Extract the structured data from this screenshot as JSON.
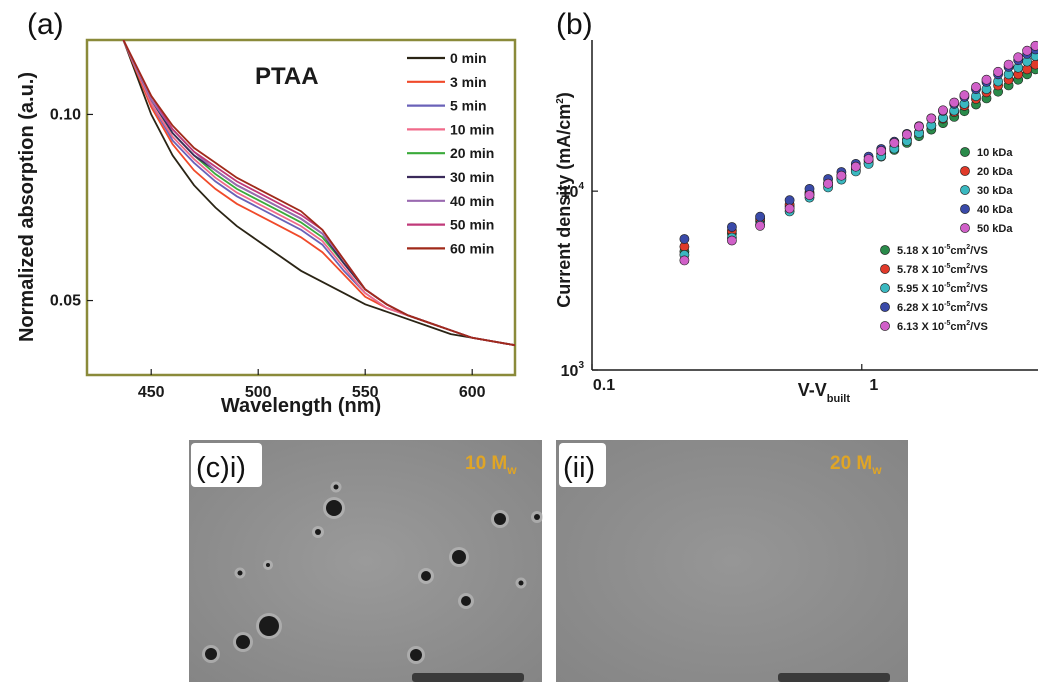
{
  "colors": {
    "axis": "#1a1a1a",
    "frame_a": "#8a8a3a",
    "sem_background": "#8f8f8f",
    "sem_label": "#e0a526"
  },
  "chart_data": [
    {
      "panel": "(a)",
      "type": "line",
      "annotation": "PTAA",
      "xlabel": "Wavelength (nm)",
      "ylabel": "Normalized absorption (a.u.)",
      "xlim": [
        420,
        620
      ],
      "ylim": [
        0.03,
        0.12
      ],
      "xticks": [
        450,
        500,
        550,
        600
      ],
      "yticks": [
        0.05,
        0.1
      ],
      "ytick_labels": [
        "0.05",
        "0.10"
      ],
      "legend_position": "top-right",
      "x": [
        437,
        450,
        460,
        470,
        480,
        490,
        500,
        510,
        520,
        530,
        540,
        550,
        560,
        570,
        580,
        590,
        600,
        610,
        620
      ],
      "series": [
        {
          "name": "0 min",
          "color": "#2a2415",
          "values": [
            0.12,
            0.1,
            0.089,
            0.081,
            0.075,
            0.07,
            0.066,
            0.062,
            0.058,
            0.055,
            0.052,
            0.049,
            0.047,
            0.045,
            0.043,
            0.041,
            0.04,
            0.039,
            0.038
          ]
        },
        {
          "name": "3 min",
          "color": "#f04a2a",
          "values": [
            0.12,
            0.102,
            0.092,
            0.085,
            0.08,
            0.076,
            0.073,
            0.07,
            0.067,
            0.063,
            0.057,
            0.051,
            0.048,
            0.046,
            0.044,
            0.042,
            0.04,
            0.039,
            0.038
          ]
        },
        {
          "name": "5 min",
          "color": "#6a62b8",
          "values": [
            0.12,
            0.103,
            0.093,
            0.087,
            0.082,
            0.078,
            0.075,
            0.072,
            0.069,
            0.065,
            0.058,
            0.052,
            0.048,
            0.046,
            0.044,
            0.042,
            0.04,
            0.039,
            0.038
          ]
        },
        {
          "name": "10 min",
          "color": "#f06a8a",
          "values": [
            0.12,
            0.103,
            0.094,
            0.088,
            0.083,
            0.079,
            0.076,
            0.073,
            0.07,
            0.066,
            0.059,
            0.052,
            0.048,
            0.046,
            0.044,
            0.042,
            0.04,
            0.039,
            0.038
          ]
        },
        {
          "name": "20 min",
          "color": "#3aaa3a",
          "values": [
            0.12,
            0.104,
            0.095,
            0.089,
            0.084,
            0.08,
            0.077,
            0.074,
            0.071,
            0.067,
            0.06,
            0.053,
            0.049,
            0.046,
            0.044,
            0.042,
            0.04,
            0.039,
            0.038
          ]
        },
        {
          "name": "30 min",
          "color": "#3a2a5a",
          "values": [
            0.12,
            0.104,
            0.095,
            0.089,
            0.085,
            0.081,
            0.078,
            0.075,
            0.072,
            0.068,
            0.06,
            0.053,
            0.049,
            0.046,
            0.044,
            0.042,
            0.04,
            0.039,
            0.038
          ]
        },
        {
          "name": "40 min",
          "color": "#9a6ab0",
          "values": [
            0.12,
            0.104,
            0.096,
            0.09,
            0.085,
            0.081,
            0.078,
            0.075,
            0.072,
            0.068,
            0.061,
            0.053,
            0.049,
            0.046,
            0.044,
            0.042,
            0.04,
            0.039,
            0.038
          ]
        },
        {
          "name": "50 min",
          "color": "#c03a7a",
          "values": [
            0.12,
            0.105,
            0.096,
            0.09,
            0.086,
            0.082,
            0.079,
            0.076,
            0.073,
            0.069,
            0.061,
            0.053,
            0.049,
            0.046,
            0.044,
            0.042,
            0.04,
            0.039,
            0.038
          ]
        },
        {
          "name": "60 min",
          "color": "#a02a1a",
          "values": [
            0.12,
            0.105,
            0.097,
            0.091,
            0.087,
            0.083,
            0.08,
            0.077,
            0.074,
            0.069,
            0.061,
            0.053,
            0.049,
            0.046,
            0.044,
            0.042,
            0.04,
            0.039,
            0.038
          ]
        }
      ]
    },
    {
      "panel": "(b)",
      "type": "scatter",
      "xlabel": "V-V",
      "xlabel_sub": "built",
      "ylabel": "Current density (mA/cm",
      "ylabel_sup": "2",
      "ylabel_end": ")",
      "xscale": "log",
      "yscale": "log",
      "xlim": [
        0.1,
        4.5
      ],
      "ylim": [
        1000,
        70000
      ],
      "xticks": [
        0.1,
        1
      ],
      "xtick_labels": [
        "0.1",
        "1"
      ],
      "yticks": [
        1000,
        10000
      ],
      "ytick_base": "10",
      "ytick_exps": [
        "3",
        "4"
      ],
      "legend_position": "bottom-right",
      "x": [
        0.22,
        0.33,
        0.42,
        0.54,
        0.64,
        0.75,
        0.84,
        0.95,
        1.06,
        1.18,
        1.32,
        1.47,
        1.63,
        1.81,
        2.0,
        2.2,
        2.4,
        2.65,
        2.9,
        3.2,
        3.5,
        3.8,
        4.1,
        4.4
      ],
      "series": [
        {
          "name": "10 kDa",
          "mobility": "5.18",
          "color": "#2a8a4a",
          "values": [
            4600,
            5800,
            6800,
            8200,
            9600,
            10900,
            11900,
            13100,
            14300,
            15600,
            17000,
            18600,
            20300,
            22100,
            24000,
            26000,
            28000,
            30500,
            33000,
            36000,
            39000,
            42000,
            45000,
            48000
          ]
        },
        {
          "name": "20 kDa",
          "mobility": "5.78",
          "color": "#e03a2a",
          "values": [
            4900,
            6000,
            7000,
            8400,
            9800,
            11100,
            12200,
            13500,
            14800,
            16200,
            17700,
            19400,
            21300,
            23300,
            25400,
            27700,
            30000,
            32800,
            35700,
            39000,
            42000,
            45000,
            48000,
            51000
          ]
        },
        {
          "name": "30 kDa",
          "mobility": "5.95",
          "color": "#3ab8c0",
          "values": [
            4400,
            5500,
            6500,
            7700,
            9200,
            10500,
            11600,
            12900,
            14200,
            15700,
            17300,
            19100,
            21100,
            23300,
            25700,
            28200,
            30800,
            34000,
            37200,
            41000,
            45000,
            49000,
            53000,
            57000
          ]
        },
        {
          "name": "40 kDa",
          "mobility": "6.28",
          "color": "#3a4aa8",
          "values": [
            5400,
            6300,
            7200,
            8900,
            10300,
            11700,
            12800,
            14200,
            15600,
            17200,
            18900,
            20900,
            23100,
            25500,
            28100,
            30800,
            33700,
            37200,
            40800,
            45000,
            49500,
            54000,
            58500,
            62000
          ]
        },
        {
          "name": "50 kDa",
          "mobility": "6.13",
          "color": "#d060c8",
          "values": [
            4100,
            5300,
            6400,
            8000,
            9500,
            11000,
            12200,
            13700,
            15100,
            16800,
            18600,
            20700,
            23000,
            25500,
            28300,
            31300,
            34400,
            38200,
            42000,
            46500,
            51000,
            56000,
            61000,
            65000
          ]
        }
      ],
      "mobility_unit_prefix": "X 10",
      "mobility_unit_exp": "-5",
      "mobility_unit_mid": "cm",
      "mobility_unit_exp2": "2",
      "mobility_unit_end": "/VS"
    }
  ],
  "figure": {
    "labels": {
      "a": "(a)",
      "b": "(b)"
    },
    "sem": {
      "left": {
        "tag": "(c)i)",
        "label": "10 M",
        "label_sub": "w"
      },
      "right": {
        "tag": "(ii)",
        "label": "20 M",
        "label_sub": "w"
      }
    }
  }
}
